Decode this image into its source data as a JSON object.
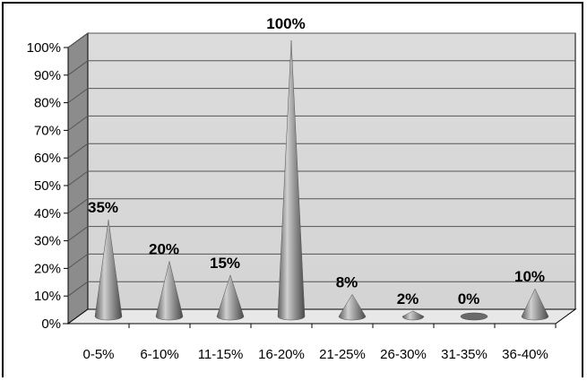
{
  "chart_data": {
    "type": "bar",
    "style": "3d-cone",
    "categories": [
      "0-5%",
      "6-10%",
      "11-15%",
      "16-20%",
      "21-25%",
      "26-30%",
      "31-35%",
      "36-40%"
    ],
    "values": [
      35,
      20,
      15,
      100,
      8,
      2,
      0,
      10
    ],
    "value_labels": [
      "35%",
      "20%",
      "15%",
      "100%",
      "8%",
      "2%",
      "0%",
      "10%"
    ],
    "title": "",
    "xlabel": "",
    "ylabel": "",
    "ylim": [
      0,
      100
    ],
    "y_ticks": [
      "0%",
      "10%",
      "20%",
      "30%",
      "40%",
      "50%",
      "60%",
      "70%",
      "80%",
      "90%",
      "100%"
    ],
    "grid": true,
    "legend": "none",
    "colors": {
      "wall": "#d9d9d9",
      "side_wall": "#8c8c8c",
      "cone": "#808080",
      "grid": "#555555"
    }
  }
}
